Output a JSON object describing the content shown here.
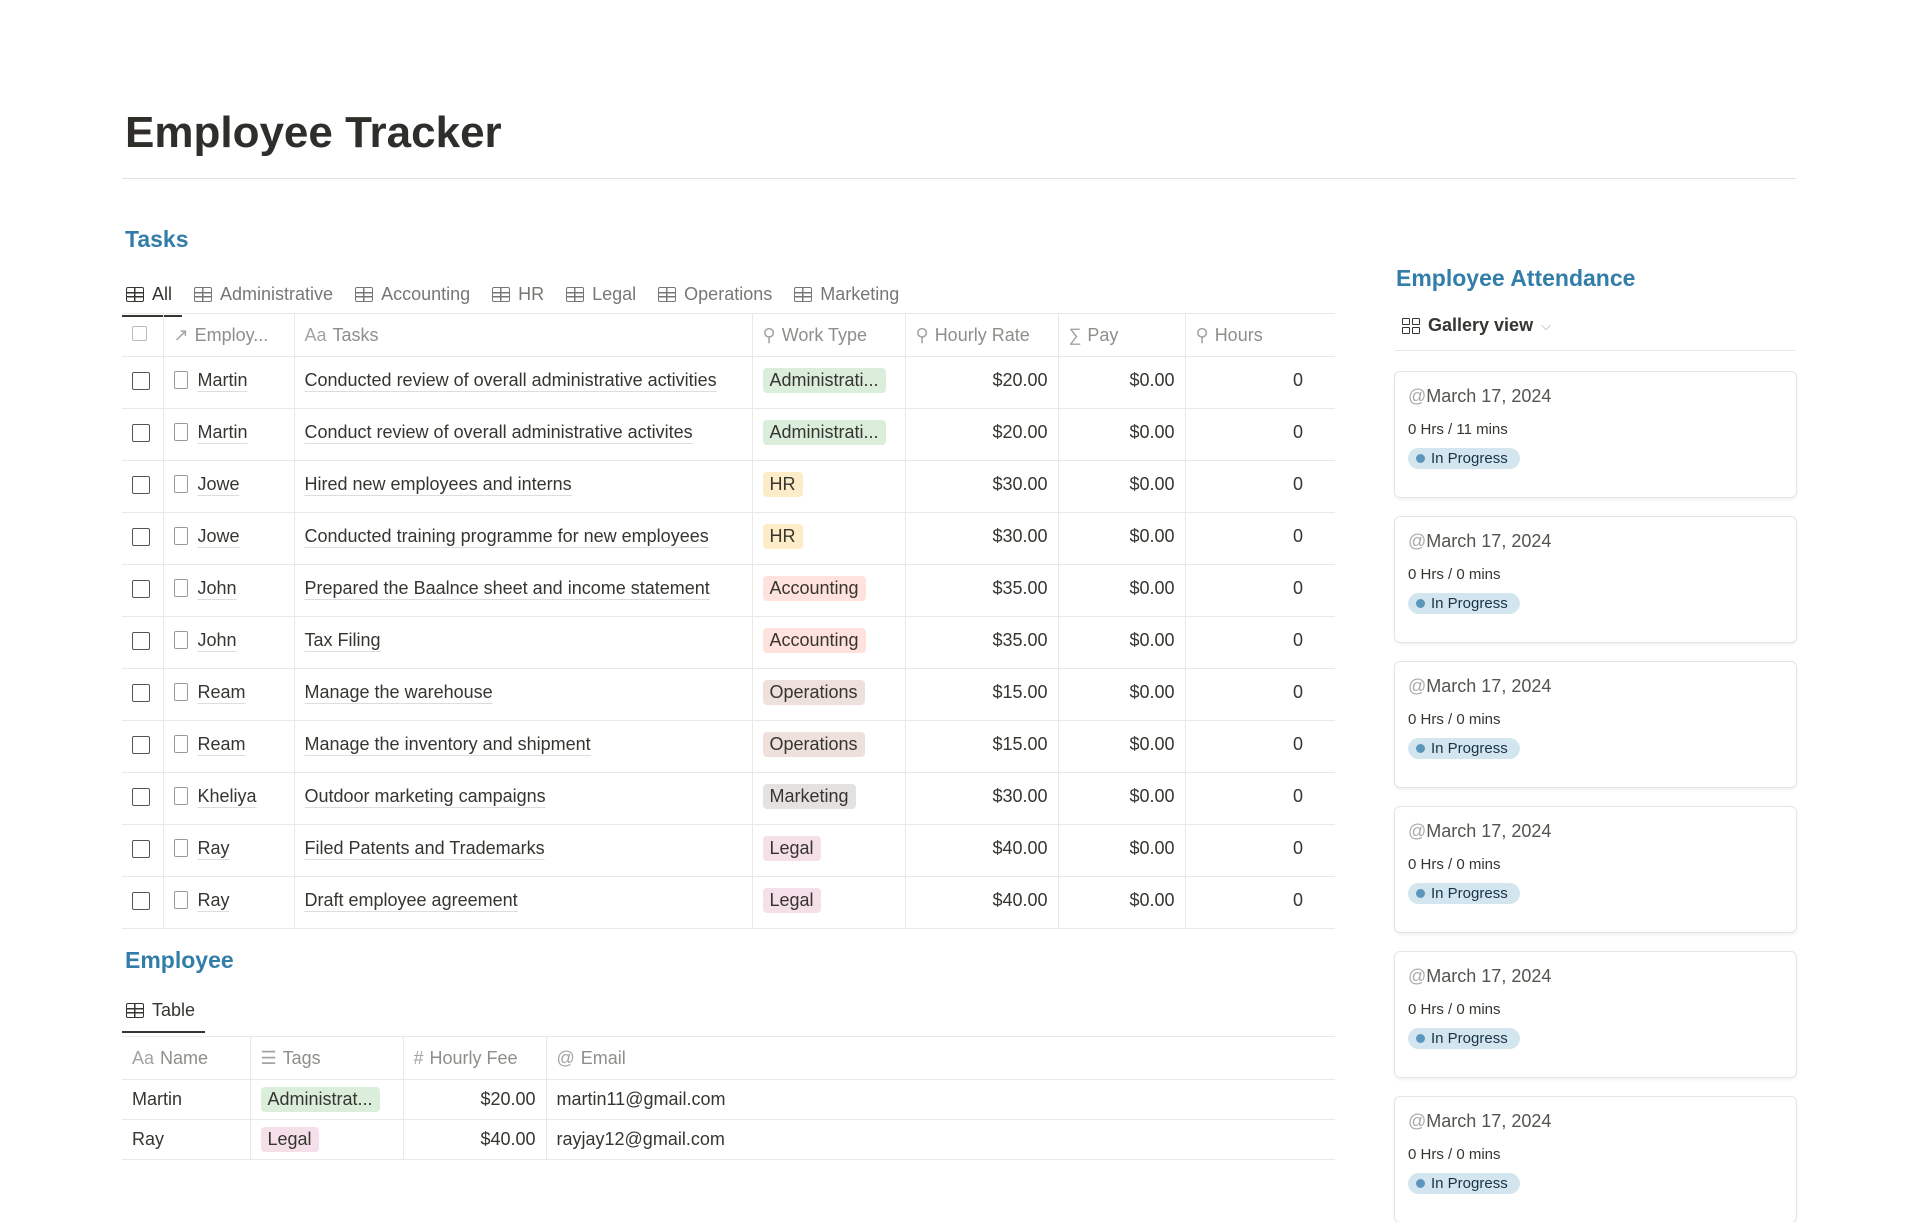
{
  "page": {
    "title": "Employee Tracker"
  },
  "tasks": {
    "heading": "Tasks",
    "tabs": [
      "All",
      "Administrative",
      "Accounting",
      "HR",
      "Legal",
      "Operations",
      "Marketing"
    ],
    "columns": [
      "Employ...",
      "Tasks",
      "Work Type",
      "Hourly Rate",
      "Pay",
      "Hours"
    ],
    "rows": [
      {
        "employee": "Martin",
        "task": "Conducted review of overall administrative activities",
        "type": "Administrati...",
        "rate": "$20.00",
        "pay": "$0.00",
        "hours": "0"
      },
      {
        "employee": "Martin",
        "task": "Conduct review of overall administrative activites",
        "type": "Administrati...",
        "rate": "$20.00",
        "pay": "$0.00",
        "hours": "0"
      },
      {
        "employee": "Jowe",
        "task": "Hired new employees and interns",
        "type": "HR",
        "rate": "$30.00",
        "pay": "$0.00",
        "hours": "0"
      },
      {
        "employee": "Jowe",
        "task": "Conducted training programme for new employees",
        "type": "HR",
        "rate": "$30.00",
        "pay": "$0.00",
        "hours": "0"
      },
      {
        "employee": "John",
        "task": "Prepared the Baalnce sheet and income statement",
        "type": "Accounting",
        "rate": "$35.00",
        "pay": "$0.00",
        "hours": "0"
      },
      {
        "employee": "John",
        "task": "Tax Filing",
        "type": "Accounting",
        "rate": "$35.00",
        "pay": "$0.00",
        "hours": "0"
      },
      {
        "employee": "Ream",
        "task": "Manage the warehouse",
        "type": "Operations",
        "rate": "$15.00",
        "pay": "$0.00",
        "hours": "0"
      },
      {
        "employee": "Ream",
        "task": "Manage the inventory and shipment",
        "type": "Operations",
        "rate": "$15.00",
        "pay": "$0.00",
        "hours": "0"
      },
      {
        "employee": "Kheliya",
        "task": "Outdoor marketing campaigns",
        "type": "Marketing",
        "rate": "$30.00",
        "pay": "$0.00",
        "hours": "0"
      },
      {
        "employee": "Ray",
        "task": "Filed Patents and Trademarks",
        "type": "Legal",
        "rate": "$40.00",
        "pay": "$0.00",
        "hours": "0"
      },
      {
        "employee": "Ray",
        "task": "Draft employee agreement",
        "type": "Legal",
        "rate": "$40.00",
        "pay": "$0.00",
        "hours": "0"
      }
    ],
    "tag_colors": {
      "Administrati...": "#dbeddb",
      "HR": "#fdecc8",
      "Accounting": "#ffe2dd",
      "Operations": "#eee0da",
      "Marketing": "#e3e2e0",
      "Legal": "#f5e0e9",
      "Administrat...": "#dbeddb"
    }
  },
  "employee": {
    "heading": "Employee",
    "tab": "Table",
    "columns": [
      "Name",
      "Tags",
      "Hourly Fee",
      "Email"
    ],
    "rows": [
      {
        "name": "Martin",
        "tag": "Administrat...",
        "fee": "$20.00",
        "email": "martin11@gmail.com"
      },
      {
        "name": "Ray",
        "tag": "Legal",
        "fee": "$40.00",
        "email": "rayjay12@gmail.com"
      }
    ]
  },
  "attendance": {
    "heading": "Employee Attendance",
    "view": "Gallery view",
    "cards": [
      {
        "date": "March 17, 2024",
        "duration": "0 Hrs / 11 mins",
        "status": "In Progress"
      },
      {
        "date": "March 17, 2024",
        "duration": "0 Hrs / 0 mins",
        "status": "In Progress"
      },
      {
        "date": "March 17, 2024",
        "duration": "0 Hrs / 0 mins",
        "status": "In Progress"
      },
      {
        "date": "March 17, 2024",
        "duration": "0 Hrs / 0 mins",
        "status": "In Progress"
      },
      {
        "date": "March 17, 2024",
        "duration": "0 Hrs / 0 mins",
        "status": "In Progress"
      },
      {
        "date": "March 17, 2024",
        "duration": "0 Hrs / 0 mins",
        "status": "In Progress"
      }
    ]
  }
}
